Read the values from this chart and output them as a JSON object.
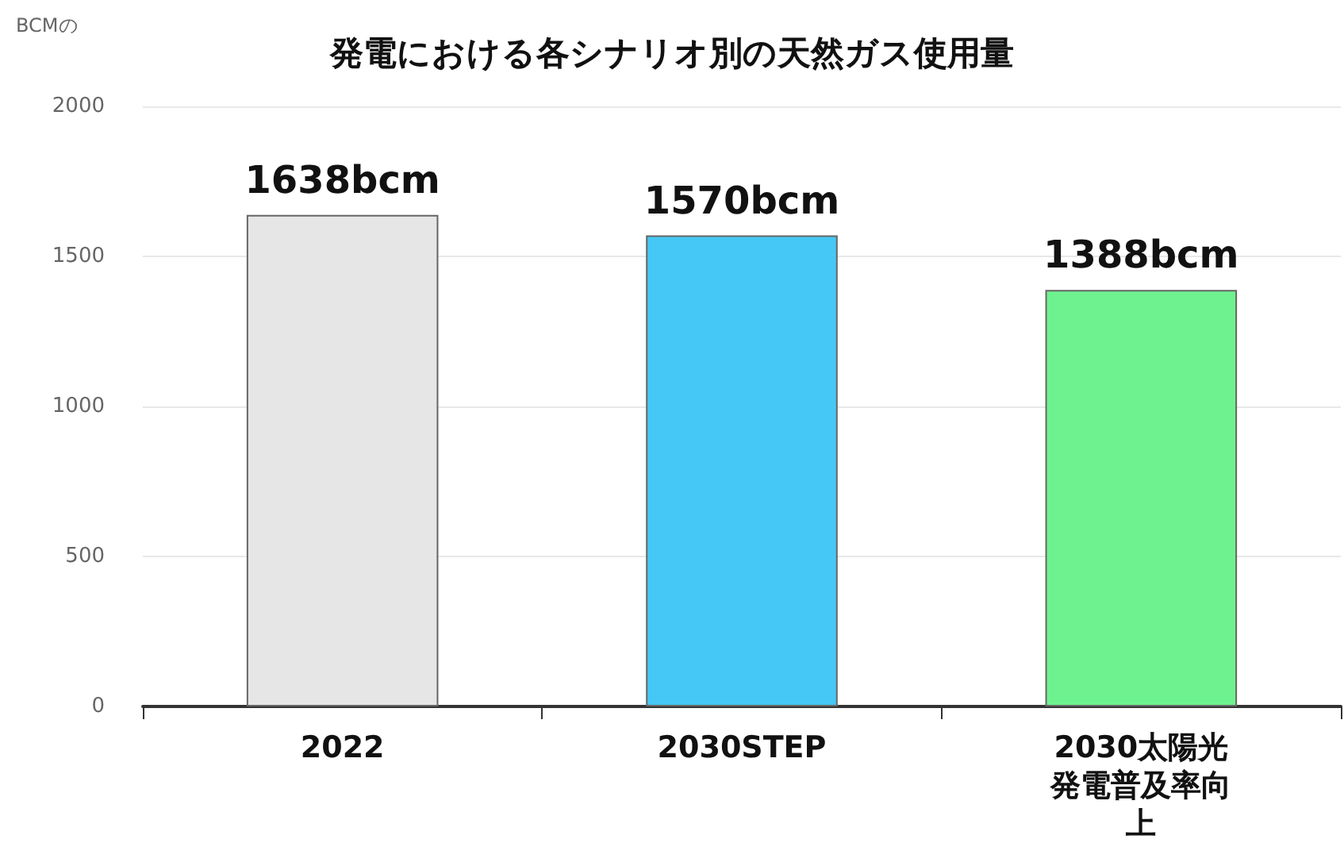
{
  "chart_data": {
    "type": "bar",
    "title": "発電における各シナリオ別の天然ガス使用量",
    "ylabel": "BCMの",
    "categories": [
      "2022",
      "2030STEP",
      "2030太陽光発電普及率向上"
    ],
    "values": [
      1638,
      1570,
      1388
    ],
    "colors": [
      "#e6e6e6",
      "#45c8f5",
      "#6ef28f"
    ],
    "value_labels": [
      "1638bcm",
      "1570bcm",
      "1388bcm"
    ],
    "ylim": [
      0,
      2000
    ],
    "yticks": [
      0,
      500,
      1000,
      1500,
      2000
    ],
    "grid": "y"
  }
}
